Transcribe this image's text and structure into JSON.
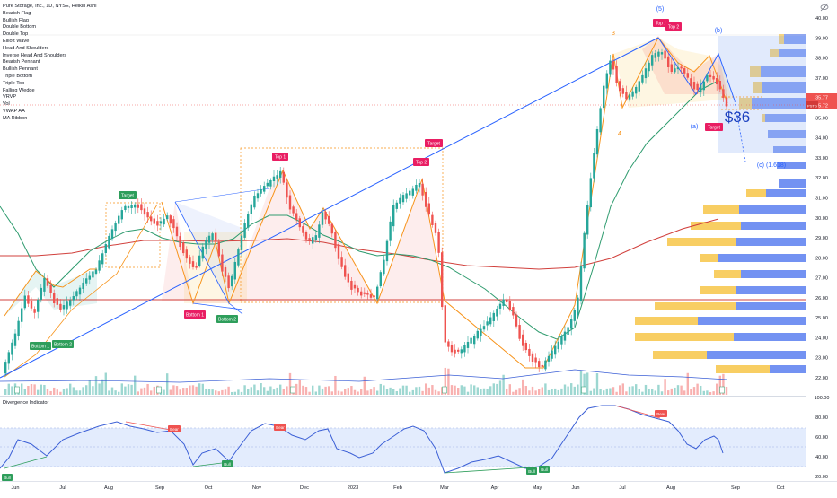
{
  "header": {
    "symbol_title": "Pure Storage, Inc., 1D, NYSE, Heikin Ashi",
    "indicators": [
      "Bearish Flag",
      "Bullish Flag",
      "Double Bottom",
      "Double Top",
      "Elliott Wave",
      "Head And Shoulders",
      "Inverse Head And Shoulders",
      "Bearish Pennant",
      "Bullish Pennant",
      "Triple Bottom",
      "Triple Top",
      "Falling Wedge",
      "VRVP",
      "Vol",
      "VWAP AA",
      "MA Ribbon"
    ]
  },
  "price_axis": {
    "ticks": [
      "40.00",
      "39.00",
      "38.00",
      "37.00",
      "36.00",
      "35.00",
      "34.00",
      "33.00",
      "32.00",
      "31.00",
      "30.00",
      "29.00",
      "28.00",
      "27.00",
      "26.00",
      "25.00",
      "24.00",
      "23.00",
      "22.00"
    ],
    "last_price_label": "35.77",
    "vwap_label": "35.72",
    "symbol_tag": "PSTG"
  },
  "time_axis": {
    "labels": [
      "Jun",
      "Jul",
      "Aug",
      "Sep",
      "Oct",
      "Nov",
      "Dec",
      "2023",
      "Feb",
      "Mar",
      "Apr",
      "May",
      "Jun",
      "Jul",
      "Aug",
      "Sep",
      "Oct"
    ]
  },
  "price_annotations": {
    "price_target_text": "$36",
    "wave_5": "(5)",
    "wave_b": "(b)",
    "wave_a": "(a)",
    "wave_c": "(c) (1.618)",
    "wave_3": "3",
    "wave_4": "4"
  },
  "pattern_labels": {
    "bottom1_left": "Bottom 1",
    "bottom2_left": "Bottom 2",
    "target_left": "Target",
    "top1_mid": "Top 1",
    "target_mid": "Target",
    "top2_mid": "Top 2",
    "bottom1_mid": "Bottom 1",
    "bottom2_mid": "Bottom 2",
    "top1_right": "Top 1",
    "top2_right": "Top 2",
    "target_right": "Target"
  },
  "oscillator": {
    "title": "Divergence Indicator",
    "ticks": [
      "100.00",
      "80.00",
      "60.00",
      "40.00",
      "20.00"
    ],
    "bear1": "Bear",
    "bear2": "Bear",
    "bear3": "Bear",
    "bull1": "Bull",
    "bull2": "Bull",
    "bull3": "Bull",
    "bull4": "Bull"
  },
  "top_right_icon": "eye-slash-icon",
  "colors": {
    "bull_candle": "#26a69a",
    "bear_candle": "#ef5350",
    "trendline": "#2962ff",
    "pattern_orange": "#f7931a",
    "ma_red": "#d1403c",
    "ma_green": "#2e9b6e",
    "vrvp_blue": "#5b7ff0",
    "vrvp_yellow": "#f7c548",
    "label_red": "#e91e63",
    "label_green": "#2e9e5b",
    "rsi_line": "#3b5fd6"
  },
  "chart_data": {
    "type": "candlestick",
    "title": "Pure Storage, Inc., 1D, NYSE, Heikin Ashi",
    "y_range": [
      21.5,
      40.4
    ],
    "series_approx_close": [
      {
        "date": "2022-06",
        "value": 22.5
      },
      {
        "date": "2022-07",
        "value": 24.5
      },
      {
        "date": "2022-08",
        "value": 30.8
      },
      {
        "date": "2022-09",
        "value": 27.0
      },
      {
        "date": "2022-10",
        "value": 26.5
      },
      {
        "date": "2022-11",
        "value": 32.0
      },
      {
        "date": "2022-12",
        "value": 28.5
      },
      {
        "date": "2023-01",
        "value": 26.0
      },
      {
        "date": "2023-02",
        "value": 31.5
      },
      {
        "date": "2023-03",
        "value": 24.0
      },
      {
        "date": "2023-04",
        "value": 25.5
      },
      {
        "date": "2023-05",
        "value": 22.8
      },
      {
        "date": "2023-06",
        "value": 37.0
      },
      {
        "date": "2023-07",
        "value": 38.5
      },
      {
        "date": "2023-08",
        "value": 35.8
      }
    ]
  }
}
